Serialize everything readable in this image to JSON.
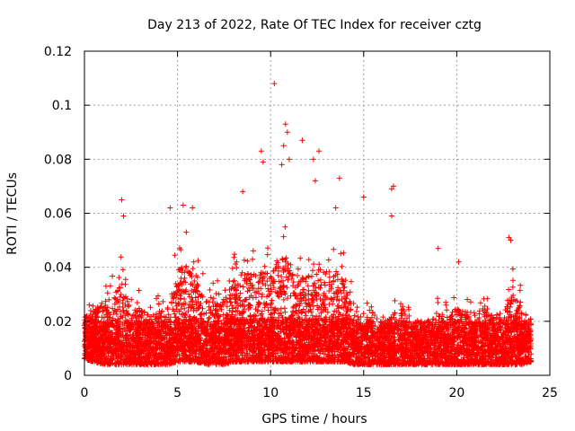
{
  "chart_data": {
    "type": "scatter",
    "title": "Day 213 of 2022, Rate Of TEC Index for receiver cztg",
    "xlabel": "GPS time / hours",
    "ylabel": "ROTI / TECUs",
    "xlim": [
      0,
      25
    ],
    "ylim": [
      0,
      0.12
    ],
    "x_ticks": [
      0,
      5,
      10,
      15,
      20,
      25
    ],
    "x_tick_labels": [
      "0",
      "5",
      "10",
      "15",
      "20",
      "25"
    ],
    "y_ticks": [
      0,
      0.02,
      0.04,
      0.06,
      0.08,
      0.1,
      0.12
    ],
    "y_tick_labels": [
      "0",
      "0.02",
      "0.04",
      "0.06",
      "0.08",
      "0.1",
      "0.12"
    ],
    "grid": true,
    "marker": "plus",
    "color": "#ff0000",
    "x_range_of_data": [
      0,
      24
    ],
    "series": [
      {
        "name": "",
        "envelope": {
          "comment_free": true,
          "x": [
            0,
            0.5,
            1,
            1.5,
            2,
            2.5,
            3,
            3.5,
            4,
            4.5,
            5,
            5.5,
            6,
            6.5,
            7,
            7.5,
            8,
            8.5,
            9,
            9.5,
            10,
            10.5,
            11,
            11.5,
            12,
            12.5,
            13,
            13.5,
            14,
            14.5,
            15,
            15.5,
            16,
            16.5,
            17,
            17.5,
            18,
            18.5,
            19,
            19.5,
            20,
            20.5,
            21,
            21.5,
            22,
            22.5,
            23,
            23.5,
            24
          ],
          "typical_max": [
            0.028,
            0.03,
            0.036,
            0.038,
            0.045,
            0.032,
            0.032,
            0.028,
            0.03,
            0.034,
            0.05,
            0.055,
            0.048,
            0.038,
            0.035,
            0.035,
            0.045,
            0.05,
            0.048,
            0.05,
            0.05,
            0.058,
            0.055,
            0.045,
            0.05,
            0.055,
            0.048,
            0.05,
            0.048,
            0.035,
            0.028,
            0.025,
            0.025,
            0.028,
            0.034,
            0.025,
            0.025,
            0.028,
            0.03,
            0.028,
            0.032,
            0.03,
            0.03,
            0.032,
            0.028,
            0.03,
            0.04,
            0.032,
            0.02
          ],
          "typical_min": [
            0.006,
            0.005,
            0.004,
            0.004,
            0.004,
            0.004,
            0.004,
            0.004,
            0.004,
            0.004,
            0.005,
            0.005,
            0.005,
            0.004,
            0.004,
            0.004,
            0.005,
            0.005,
            0.005,
            0.005,
            0.005,
            0.005,
            0.005,
            0.005,
            0.005,
            0.005,
            0.005,
            0.005,
            0.005,
            0.004,
            0.004,
            0.004,
            0.004,
            0.004,
            0.004,
            0.004,
            0.004,
            0.004,
            0.004,
            0.004,
            0.004,
            0.004,
            0.004,
            0.004,
            0.004,
            0.004,
            0.004,
            0.004,
            0.005
          ]
        },
        "peaks": [
          {
            "x": 2.0,
            "y": 0.065
          },
          {
            "x": 2.1,
            "y": 0.059
          },
          {
            "x": 4.6,
            "y": 0.062
          },
          {
            "x": 5.3,
            "y": 0.063
          },
          {
            "x": 5.8,
            "y": 0.062
          },
          {
            "x": 8.5,
            "y": 0.068
          },
          {
            "x": 9.5,
            "y": 0.083
          },
          {
            "x": 9.6,
            "y": 0.079
          },
          {
            "x": 10.2,
            "y": 0.108
          },
          {
            "x": 10.8,
            "y": 0.093
          },
          {
            "x": 10.9,
            "y": 0.09
          },
          {
            "x": 10.7,
            "y": 0.085
          },
          {
            "x": 10.6,
            "y": 0.078
          },
          {
            "x": 11.0,
            "y": 0.08
          },
          {
            "x": 11.7,
            "y": 0.087
          },
          {
            "x": 12.3,
            "y": 0.08
          },
          {
            "x": 12.6,
            "y": 0.083
          },
          {
            "x": 12.4,
            "y": 0.072
          },
          {
            "x": 13.7,
            "y": 0.073
          },
          {
            "x": 13.5,
            "y": 0.062
          },
          {
            "x": 15.0,
            "y": 0.066
          },
          {
            "x": 16.5,
            "y": 0.069
          },
          {
            "x": 16.6,
            "y": 0.07
          },
          {
            "x": 16.5,
            "y": 0.059
          },
          {
            "x": 22.9,
            "y": 0.05
          },
          {
            "x": 22.8,
            "y": 0.051
          },
          {
            "x": 19.0,
            "y": 0.047
          },
          {
            "x": 20.1,
            "y": 0.042
          }
        ]
      }
    ]
  }
}
